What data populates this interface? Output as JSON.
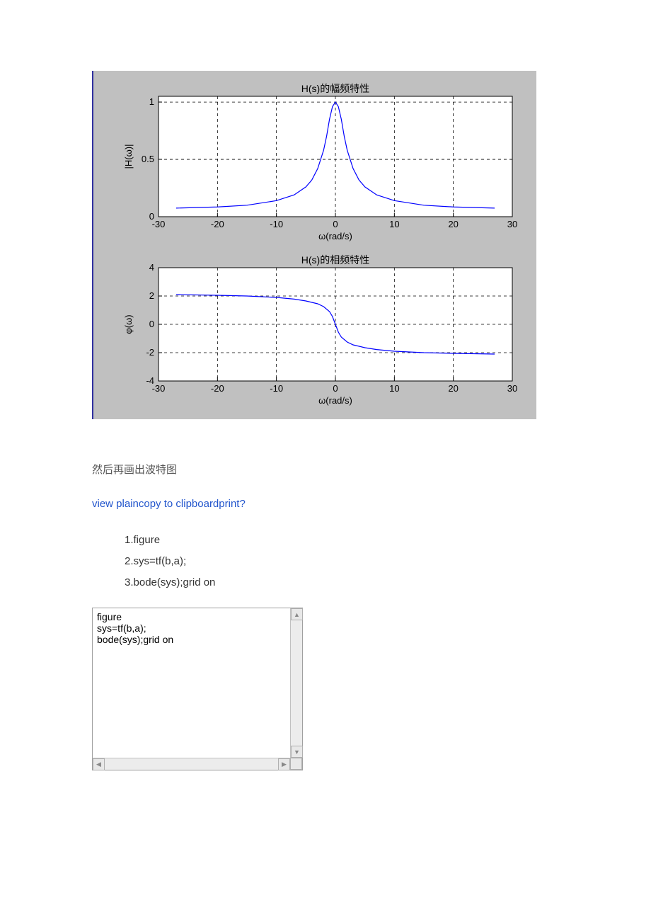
{
  "figure": {
    "bg_color": "#c0c0c0",
    "border_left_color": "#3030a0",
    "axes_bg": "#ffffff",
    "line_color": "#0000ff",
    "axis_color": "#000000",
    "grid_color": "#000000",
    "grid_dash": "4,4",
    "font_size": 13,
    "top": {
      "title": "H(s)的幅频特性",
      "xlabel": "ω(rad/s)",
      "ylabel": "|H(ω)|",
      "xlim": [
        -30,
        30
      ],
      "ylim": [
        0,
        1.05
      ],
      "xticks": [
        -30,
        -20,
        -10,
        0,
        10,
        20,
        30
      ],
      "yticks": [
        0,
        0.5,
        1
      ],
      "ytick_labels": [
        "0",
        "0.5",
        "1"
      ],
      "grid_x": [
        -20,
        -10,
        0,
        10,
        20
      ],
      "grid_y": [
        0.5,
        1
      ],
      "series": [
        {
          "x": -27,
          "y": 0.075
        },
        {
          "x": -20,
          "y": 0.085
        },
        {
          "x": -15,
          "y": 0.1
        },
        {
          "x": -10,
          "y": 0.14
        },
        {
          "x": -7,
          "y": 0.19
        },
        {
          "x": -5,
          "y": 0.26
        },
        {
          "x": -4,
          "y": 0.32
        },
        {
          "x": -3,
          "y": 0.42
        },
        {
          "x": -2,
          "y": 0.58
        },
        {
          "x": -1.5,
          "y": 0.7
        },
        {
          "x": -1,
          "y": 0.85
        },
        {
          "x": -0.5,
          "y": 0.96
        },
        {
          "x": 0,
          "y": 1.0
        },
        {
          "x": 0.5,
          "y": 0.96
        },
        {
          "x": 1,
          "y": 0.85
        },
        {
          "x": 1.5,
          "y": 0.7
        },
        {
          "x": 2,
          "y": 0.58
        },
        {
          "x": 3,
          "y": 0.42
        },
        {
          "x": 4,
          "y": 0.32
        },
        {
          "x": 5,
          "y": 0.26
        },
        {
          "x": 7,
          "y": 0.19
        },
        {
          "x": 10,
          "y": 0.14
        },
        {
          "x": 15,
          "y": 0.1
        },
        {
          "x": 20,
          "y": 0.085
        },
        {
          "x": 27,
          "y": 0.075
        }
      ]
    },
    "bottom": {
      "title": "H(s)的相频特性",
      "xlabel": "ω(rad/s)",
      "ylabel": "φ(ω)",
      "xlim": [
        -30,
        30
      ],
      "ylim": [
        -4,
        4
      ],
      "xticks": [
        -30,
        -20,
        -10,
        0,
        10,
        20,
        30
      ],
      "yticks": [
        -4,
        -2,
        0,
        2,
        4
      ],
      "grid_x": [
        -20,
        -10,
        0,
        10,
        20
      ],
      "grid_y": [
        -2,
        0,
        2
      ],
      "series": [
        {
          "x": -27,
          "y": 2.1
        },
        {
          "x": -20,
          "y": 2.05
        },
        {
          "x": -15,
          "y": 2.0
        },
        {
          "x": -10,
          "y": 1.9
        },
        {
          "x": -7,
          "y": 1.78
        },
        {
          "x": -5,
          "y": 1.65
        },
        {
          "x": -3,
          "y": 1.45
        },
        {
          "x": -2,
          "y": 1.25
        },
        {
          "x": -1,
          "y": 0.9
        },
        {
          "x": -0.5,
          "y": 0.55
        },
        {
          "x": 0,
          "y": 0.0
        },
        {
          "x": 0.5,
          "y": -0.55
        },
        {
          "x": 1,
          "y": -0.9
        },
        {
          "x": 2,
          "y": -1.25
        },
        {
          "x": 3,
          "y": -1.45
        },
        {
          "x": 5,
          "y": -1.65
        },
        {
          "x": 7,
          "y": -1.78
        },
        {
          "x": 10,
          "y": -1.9
        },
        {
          "x": 15,
          "y": -2.0
        },
        {
          "x": 20,
          "y": -2.05
        },
        {
          "x": 27,
          "y": -2.1
        }
      ]
    }
  },
  "body_text": "然后再画出波特图",
  "links": {
    "view_plain": "view plain",
    "copy": "copy to clipboard",
    "print": "print",
    "question": "?"
  },
  "code_list": [
    "figure",
    "sys=tf(b,a);",
    "bode(sys);grid on"
  ],
  "code_box": "figure\nsys=tf(b,a);\nbode(sys);grid on"
}
